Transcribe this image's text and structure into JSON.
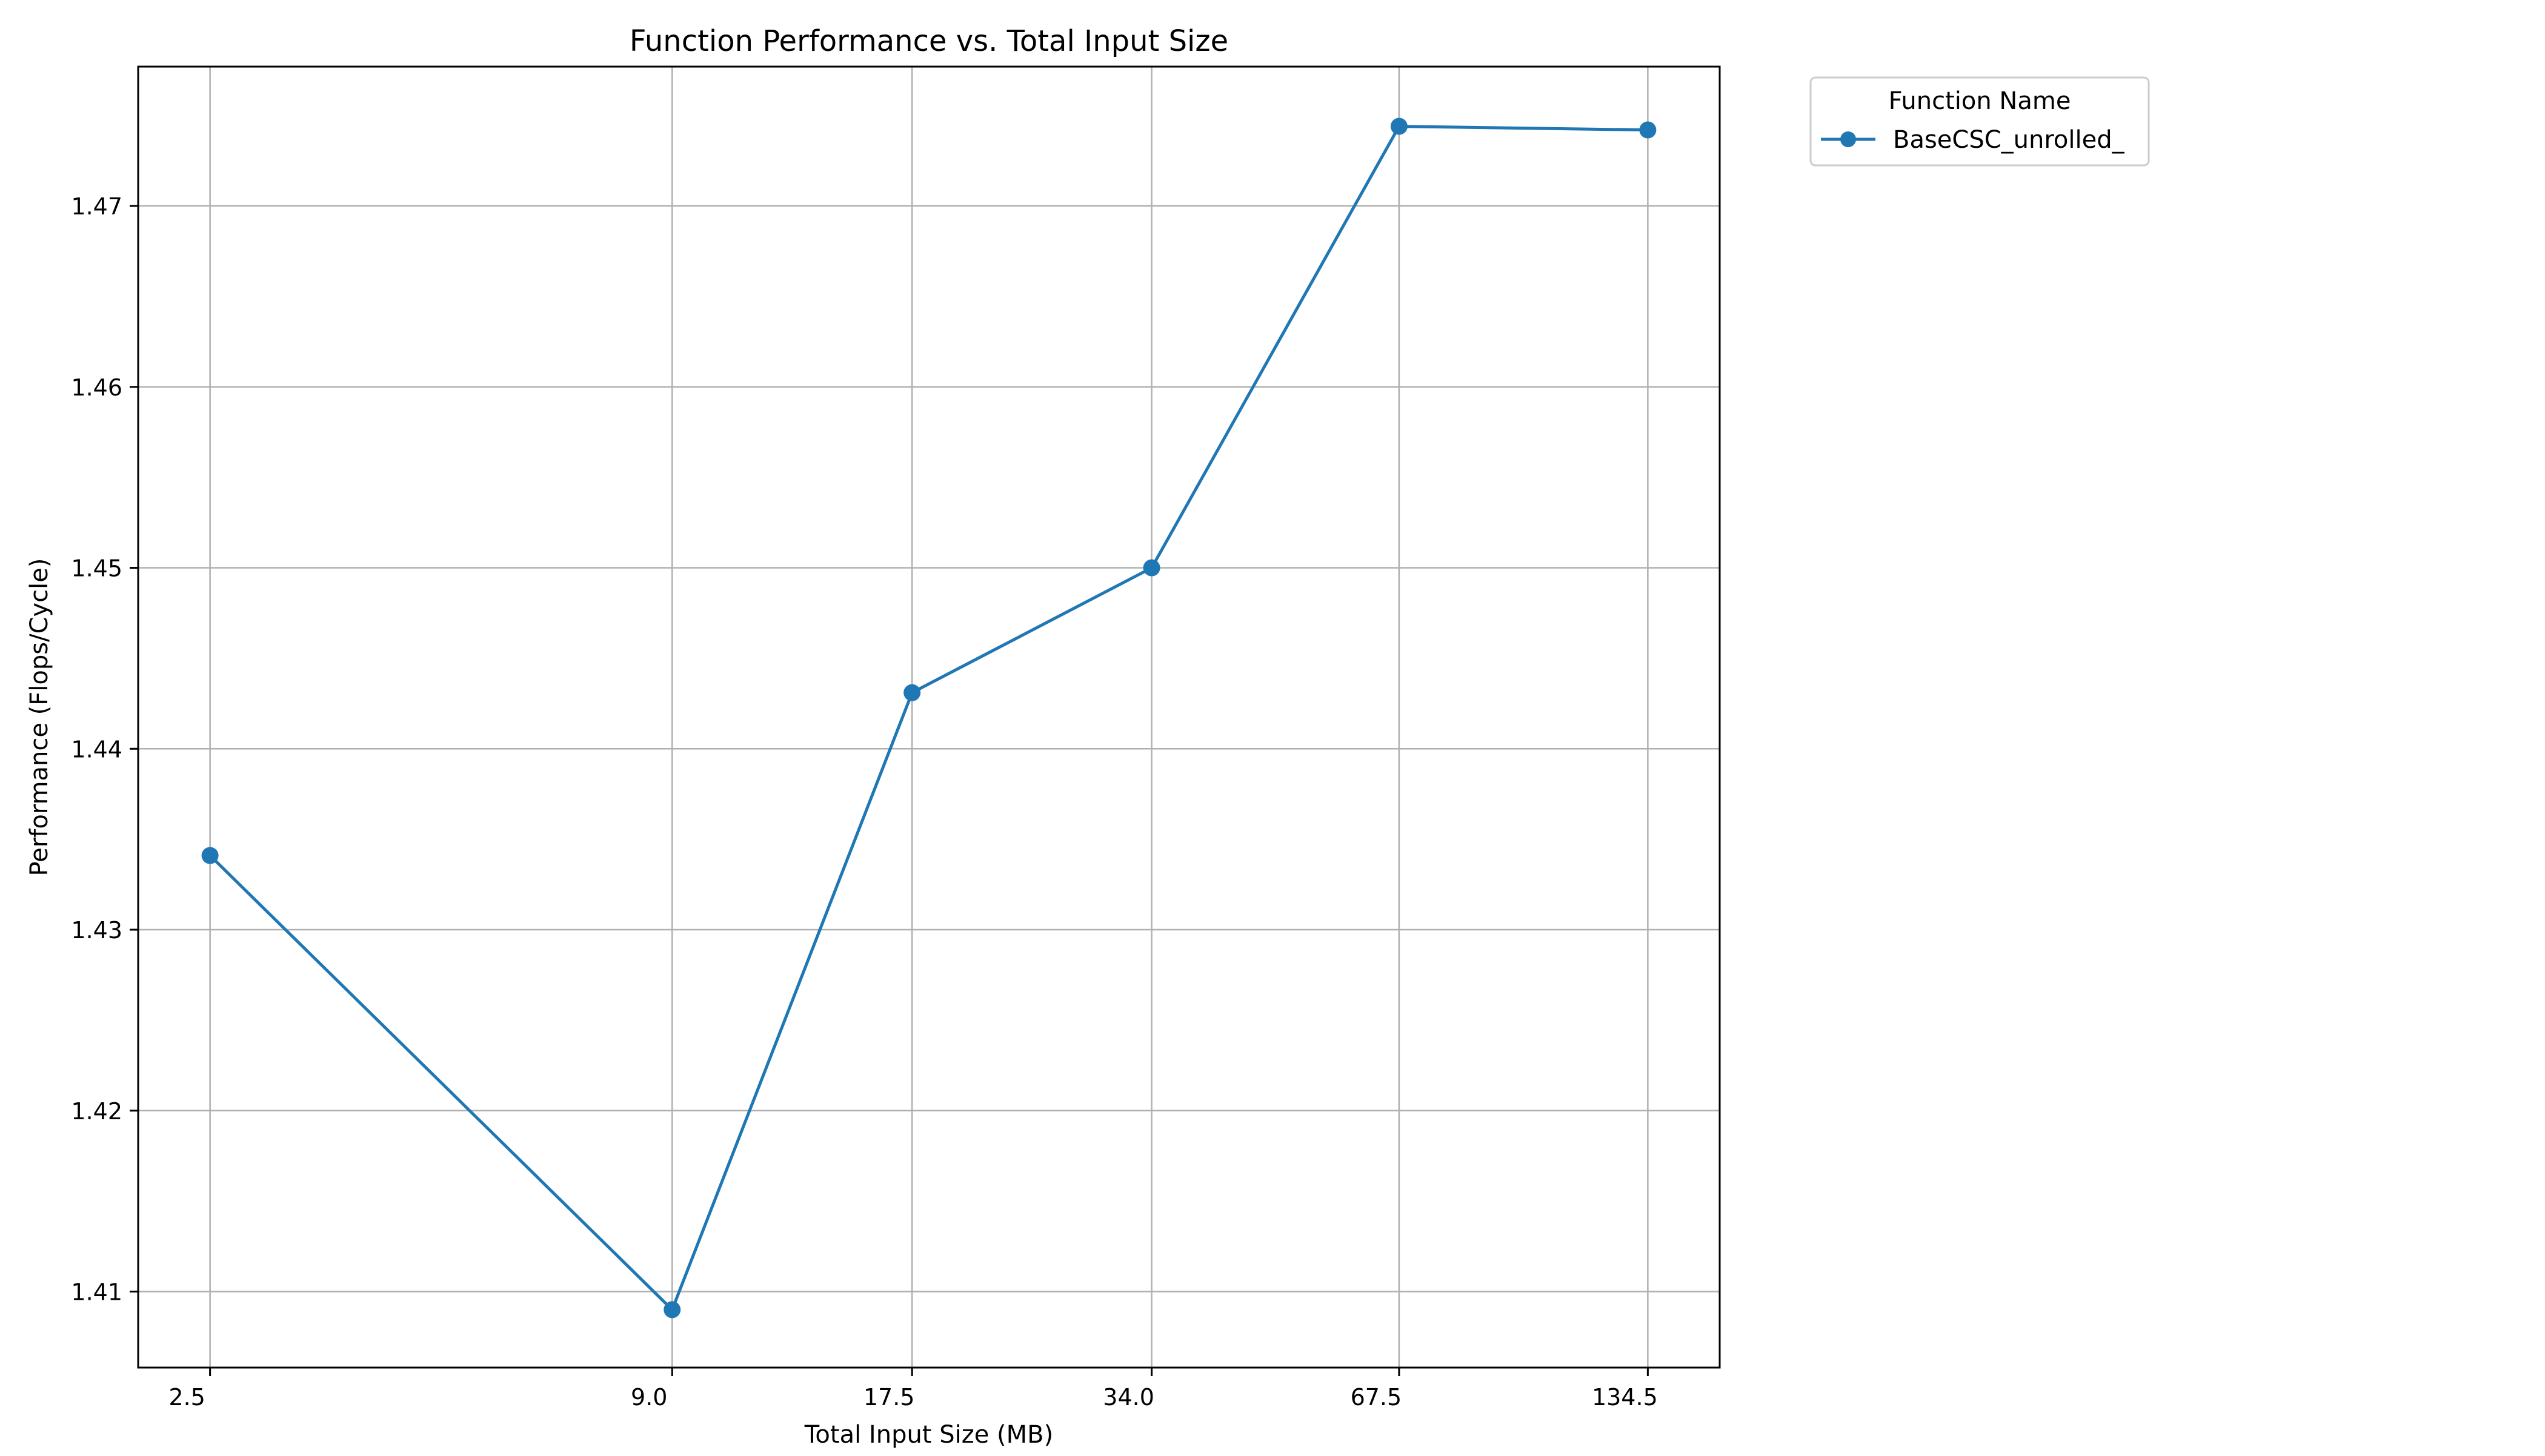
{
  "chart_data": {
    "type": "line",
    "title": "Function Performance vs. Total Input Size",
    "xlabel": "Total Input Size (MB)",
    "ylabel": "Performance (Flops/Cycle)",
    "x_scale": "log2",
    "x_ticks": [
      2.5,
      9.0,
      17.5,
      34.0,
      67.5,
      134.5
    ],
    "x_tick_labels": [
      "2.5",
      "9.0",
      "17.5",
      "34.0",
      "67.5",
      "134.5"
    ],
    "y_ticks": [
      1.41,
      1.42,
      1.43,
      1.44,
      1.45,
      1.46,
      1.47
    ],
    "y_tick_labels": [
      "1.41",
      "1.42",
      "1.43",
      "1.44",
      "1.45",
      "1.46",
      "1.47"
    ],
    "ylim": [
      1.4058,
      1.4777
    ],
    "grid": true,
    "legend": {
      "title": "Function Name",
      "placement": "outside-top-right"
    },
    "series": [
      {
        "name": "BaseCSC_unrolled_",
        "color": "#1f77b4",
        "marker": "circle",
        "x": [
          2.5,
          9.0,
          17.5,
          34.0,
          67.5,
          134.5
        ],
        "y": [
          1.4341,
          1.409,
          1.4431,
          1.45,
          1.4744,
          1.4742
        ]
      }
    ]
  }
}
